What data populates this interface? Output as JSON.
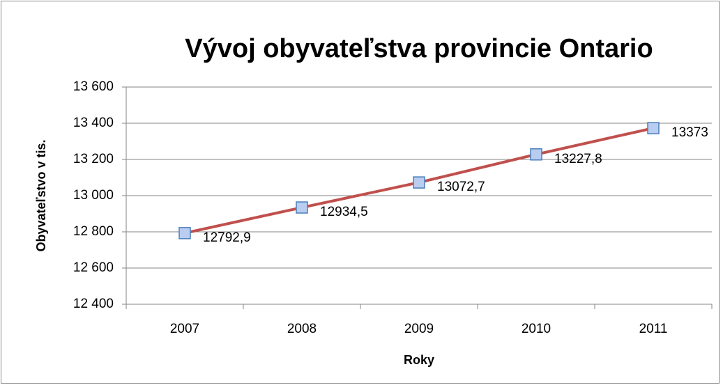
{
  "chart_data": {
    "type": "line",
    "title": "Vývoj obyvateľstva provincie Ontario",
    "x_label": "Roky",
    "y_label": "Obyvateľstvo v tis.",
    "categories": [
      "2007",
      "2008",
      "2009",
      "2010",
      "2011"
    ],
    "series": [
      {
        "name": "Obyvateľstvo",
        "color": "#c0504d",
        "marker_color": "#b9cdf0",
        "values": [
          12792.9,
          12934.5,
          13072.7,
          13227.8,
          13373
        ],
        "value_labels": [
          "12792,9",
          "12934,5",
          "13072,7",
          "13227,8",
          "13373"
        ]
      }
    ],
    "ylim": [
      12400,
      13600
    ],
    "yticks": [
      {
        "value": 12400,
        "label": "12 400"
      },
      {
        "value": 12600,
        "label": "12 600"
      },
      {
        "value": 12800,
        "label": "12 800"
      },
      {
        "value": 13000,
        "label": "13 000"
      },
      {
        "value": 13200,
        "label": "13 200"
      },
      {
        "value": 13400,
        "label": "13 400"
      },
      {
        "value": 13600,
        "label": "13 600"
      }
    ],
    "grid": true
  }
}
